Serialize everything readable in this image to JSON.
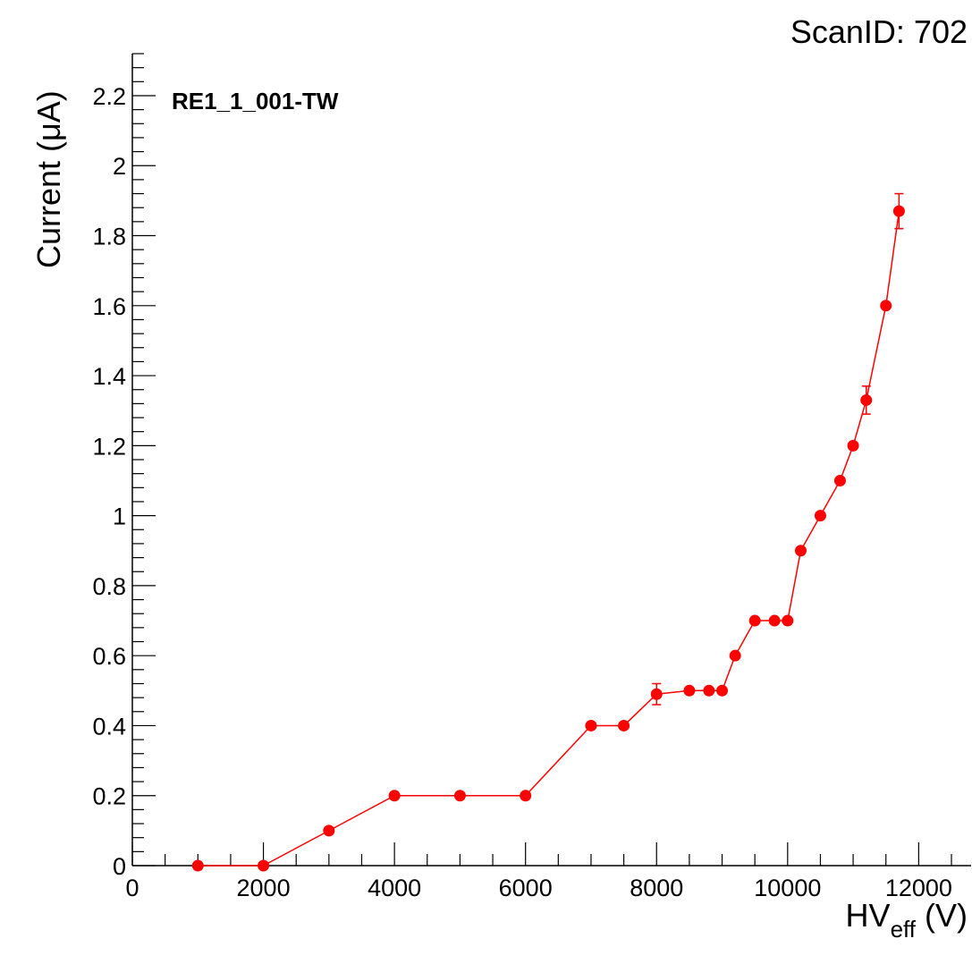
{
  "scan_label": "ScanID: 702",
  "chart_data": {
    "type": "scatter",
    "connected": true,
    "label": "RE1_1_001-TW",
    "xlabel": {
      "main": "HV",
      "sub": "eff",
      "unit": " (V)"
    },
    "ylabel": "Current (μA)",
    "xlim": [
      0,
      12800
    ],
    "ylim": [
      0,
      2.32
    ],
    "x_ticks": [
      0,
      2000,
      4000,
      6000,
      8000,
      10000,
      12000
    ],
    "x_tick_labels": [
      "0",
      "2000",
      "4000",
      "6000",
      "8000",
      "10000",
      "12000"
    ],
    "y_ticks": [
      0,
      0.2,
      0.4,
      0.6,
      0.8,
      1,
      1.2,
      1.4,
      1.6,
      1.8,
      2,
      2.2
    ],
    "y_tick_labels": [
      "0",
      "0.2",
      "0.4",
      "0.6",
      "0.8",
      "1",
      "1.2",
      "1.4",
      "1.6",
      "1.8",
      "2",
      "2.2"
    ],
    "series": [
      {
        "color": "#ff0000",
        "x": [
          1000,
          2000,
          3000,
          4000,
          5000,
          6000,
          7000,
          7500,
          8000,
          8500,
          8800,
          9000,
          9200,
          9500,
          9800,
          10000,
          10200,
          10500,
          10800,
          11000,
          11200,
          11500,
          11700
        ],
        "y": [
          0,
          0,
          0.1,
          0.2,
          0.2,
          0.2,
          0.4,
          0.4,
          0.49,
          0.5,
          0.5,
          0.5,
          0.6,
          0.7,
          0.7,
          0.7,
          0.9,
          1.0,
          1.1,
          1.2,
          1.33,
          1.6,
          1.87
        ],
        "yerr": [
          0,
          0,
          0,
          0,
          0,
          0,
          0,
          0,
          0.03,
          0,
          0,
          0,
          0,
          0,
          0,
          0,
          0,
          0,
          0,
          0,
          0.04,
          0,
          0.05
        ]
      }
    ],
    "grid": false,
    "legend": "top-left"
  }
}
